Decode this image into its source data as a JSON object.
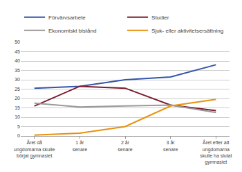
{
  "chart_data": {
    "type": "line",
    "categories": [
      "Året då\nungdomarna skulle\nbörjat gymnasiet",
      "1 år\nsenare",
      "2 år\nsenare",
      "3 år\nsenare",
      "Året efter att\nungdomarna\nskulle ha slutat\ngymnasiet"
    ],
    "series": [
      {
        "name": "Förvärvsarbete",
        "color": "#3355AA",
        "values": [
          25.5,
          26.5,
          30.0,
          31.5,
          38.0
        ]
      },
      {
        "name": "Studier",
        "color": "#7B1C2E",
        "values": [
          16.0,
          26.5,
          25.5,
          16.5,
          13.5
        ]
      },
      {
        "name": "Ekonomiskt bistånd",
        "color": "#999999",
        "values": [
          17.5,
          15.5,
          16.0,
          16.5,
          12.5
        ]
      },
      {
        "name": "Sjuk- eller aktivitetsersättning",
        "color": "#E8920A",
        "values": [
          0.5,
          1.5,
          5.0,
          16.0,
          19.5
        ]
      }
    ],
    "ylim": [
      0,
      50
    ],
    "yticks": [
      0,
      5,
      10,
      15,
      20,
      25,
      30,
      35,
      40,
      45,
      50
    ],
    "grid": true,
    "legend": "upper left"
  }
}
